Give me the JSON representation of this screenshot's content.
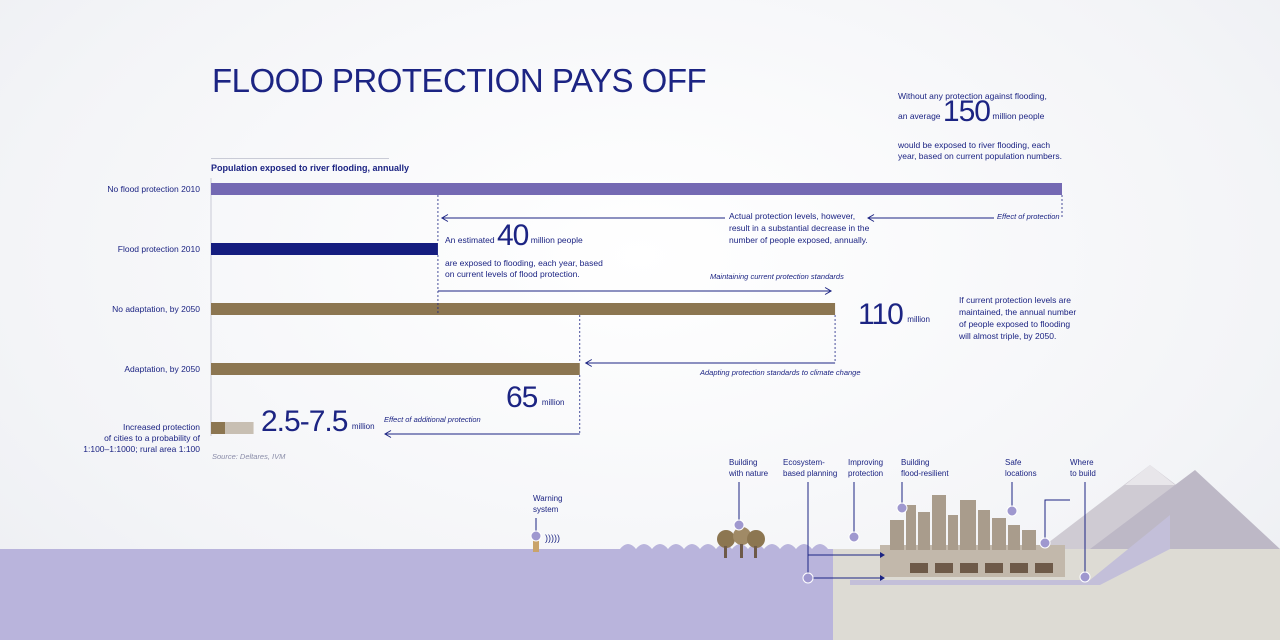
{
  "title": "FLOOD PROTECTION PAYS OFF",
  "subtitle": "Population exposed to river flooding, annually",
  "source": "Source: Deltares, IVM",
  "colors": {
    "purple": "#7469b3",
    "navy": "#151d7f",
    "brown": "#8c7651",
    "beige": "#c8bfb3",
    "text": "#1c2483",
    "water": "#b9b4dc",
    "land": "#dddbd4"
  },
  "chart_data": {
    "type": "bar",
    "orientation": "horizontal",
    "unit": "million",
    "categories": [
      "No flood protection 2010",
      "Flood protection 2010",
      "No adaptation, by 2050",
      "Adaptation, by 2050",
      "Increased protection of cities to a probability of 1:100–1:1000; rural area 1:100"
    ],
    "category_lines": [
      [
        "No flood protection 2010"
      ],
      [
        "Flood protection 2010"
      ],
      [
        "No adaptation, by 2050"
      ],
      [
        "Adaptation, by 2050"
      ],
      [
        "Increased protection",
        "of cities to a probability of",
        "1:100–1:1000; rural area 1:100"
      ]
    ],
    "values": [
      150,
      40,
      110,
      65,
      7.5
    ],
    "range_low": [
      null,
      null,
      null,
      null,
      2.5
    ],
    "xlim": [
      0,
      150
    ],
    "grid": false,
    "legend": false
  },
  "annotations": {
    "n150": {
      "pre": "an average",
      "num": "150",
      "post": "million people",
      "line1": "Without any protection against flooding,",
      "line2": "would be exposed to river flooding, each",
      "line3": "year, based on current population numbers."
    },
    "n40": {
      "pre": "An estimated",
      "num": "40",
      "post": "million people",
      "line2": "are exposed to flooding, each year, based",
      "line3": "on current levels of flood protection."
    },
    "n110": {
      "num": "110",
      "unit": "million"
    },
    "n110note": {
      "line1": "If current protection levels are",
      "line2": "maintained, the annual number",
      "line3": "of people exposed to flooding",
      "line4": "will almost triple, by 2050."
    },
    "n65": {
      "num": "65",
      "unit": "million"
    },
    "nlast": {
      "num": "2.5-7.5",
      "unit": "million"
    },
    "actual": {
      "line1": "Actual protection levels, however,",
      "line2": "result in a substantial decrease in the",
      "line3": "number of people exposed, annually."
    },
    "effect_protection": "Effect of protection",
    "maintaining": "Maintaining current protection standards",
    "adapting": "Adapting protection standards to climate change",
    "effect_additional": "Effect of additional protection"
  },
  "illustration": {
    "warning": [
      "Warning",
      "system"
    ],
    "nature": [
      "Building",
      "with nature"
    ],
    "ecosystem": [
      "Ecosystem-",
      "based planning"
    ],
    "improving": [
      "Improving",
      "protection"
    ],
    "resilient": [
      "Building",
      "flood-resilient"
    ],
    "safe": [
      "Safe",
      "locations"
    ],
    "where": [
      "Where",
      "to build"
    ]
  }
}
